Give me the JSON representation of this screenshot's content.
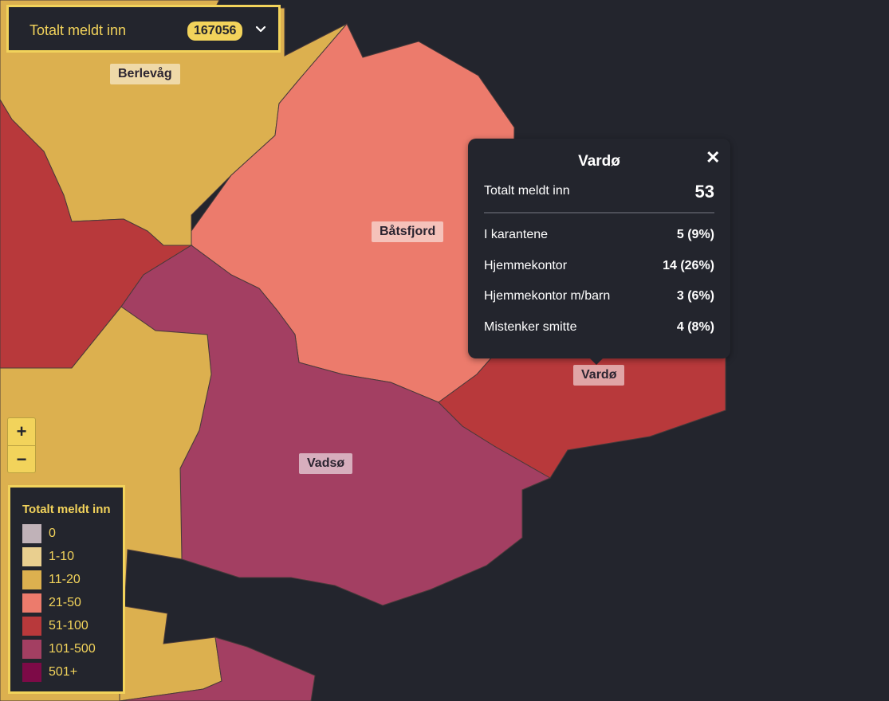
{
  "colors": {
    "bg": "#23252d",
    "accent": "#f2d35b",
    "c0": "#c0b2b8",
    "c1_10": "#e9cf8f",
    "c11_20": "#dcb04f",
    "c21_50": "#ec7b6c",
    "c51_100": "#b8393b",
    "c101_500": "#a33f62",
    "c501_plus": "#7d0a47"
  },
  "selector": {
    "title": "Totalt meldt inn",
    "count": "167056",
    "icon": "chevron-down-icon"
  },
  "zoom": {
    "in_label": "+",
    "out_label": "−"
  },
  "legend": {
    "title": "Totalt meldt inn",
    "items": [
      {
        "label": "0",
        "color": "#c0b2b8"
      },
      {
        "label": "1-10",
        "color": "#e9cf8f"
      },
      {
        "label": "11-20",
        "color": "#dcb04f"
      },
      {
        "label": "21-50",
        "color": "#ec7b6c"
      },
      {
        "label": "51-100",
        "color": "#b8393b"
      },
      {
        "label": "101-500",
        "color": "#a33f62"
      },
      {
        "label": "501+",
        "color": "#7d0a47"
      }
    ]
  },
  "map_labels": {
    "berlevag": "Berlevåg",
    "batsfjord": "Båtsfjord",
    "vardo": "Vardø",
    "vadso": "Vadsø"
  },
  "popup": {
    "title": "Vardø",
    "close_icon": "close-icon",
    "total_label": "Totalt meldt inn",
    "total_value": "53",
    "rows": [
      {
        "label": "I karantene",
        "value": "5 (9%)"
      },
      {
        "label": "Hjemmekontor",
        "value": "14 (26%)"
      },
      {
        "label": "Hjemmekontor m/barn",
        "value": "3 (6%)"
      },
      {
        "label": "Mistenker smitte",
        "value": "4 (8%)"
      }
    ]
  }
}
